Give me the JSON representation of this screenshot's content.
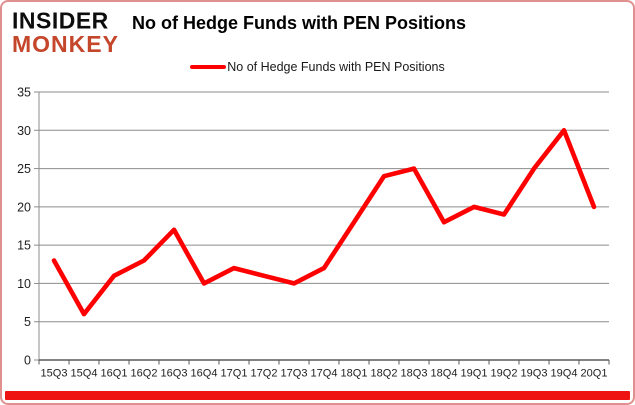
{
  "brand": {
    "line1": "INSIDER",
    "line2": "MONKEY",
    "line2_color": "#c5472b"
  },
  "header": {
    "title": "No of Hedge Funds with PEN Positions"
  },
  "legend": {
    "label": "No of Hedge Funds with PEN Positions",
    "marker_color": "#fe0000"
  },
  "chart_data": {
    "type": "line",
    "title": "No of Hedge Funds with PEN Positions",
    "series_name": "No of Hedge Funds with PEN Positions",
    "categories": [
      "15Q3",
      "15Q4",
      "16Q1",
      "16Q2",
      "16Q3",
      "16Q4",
      "17Q1",
      "17Q2",
      "17Q3",
      "17Q4",
      "18Q1",
      "18Q2",
      "18Q3",
      "18Q4",
      "19Q1",
      "19Q2",
      "19Q3",
      "19Q4",
      "20Q1"
    ],
    "values": [
      13,
      6,
      11,
      13,
      17,
      10,
      12,
      11,
      10,
      12,
      18,
      24,
      25,
      18,
      20,
      19,
      25,
      30,
      20
    ],
    "xlabel": "",
    "ylabel": "",
    "ylim": [
      0,
      35
    ],
    "ytick_step": 5,
    "yticklabels": [
      "0",
      "5",
      "10",
      "15",
      "20",
      "25",
      "30",
      "35"
    ],
    "grid": true,
    "legend_position": "top",
    "line_color": "#fe0000",
    "grid_color": "#8c8c8c",
    "axis_color": "#595959",
    "tick_label_color": "#1f1f1f"
  },
  "footer": {
    "bar_color": "#ee1411"
  },
  "frame": {
    "border_color": "#e0918f"
  }
}
